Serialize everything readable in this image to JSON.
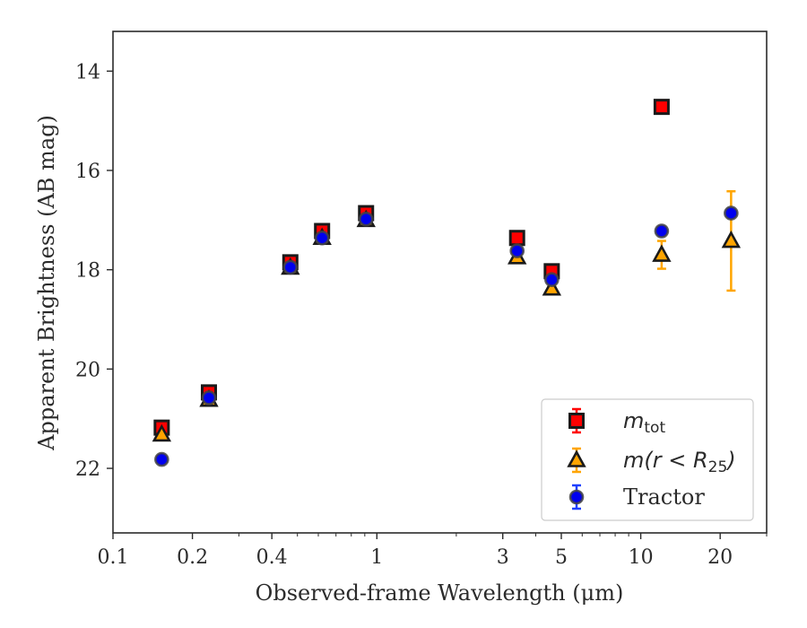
{
  "chart_data": {
    "type": "scatter",
    "xlabel": "Observed-frame Wavelength (μm)",
    "ylabel": "Apparent Brightness (AB mag)",
    "xscale": "log",
    "xlim": [
      0.1,
      30
    ],
    "ylim": [
      23.3,
      13.2
    ],
    "y_inverted": true,
    "x_ticks": [
      {
        "value": 0.1,
        "label": "0.1"
      },
      {
        "value": 0.2,
        "label": "0.2"
      },
      {
        "value": 0.4,
        "label": "0.4"
      },
      {
        "value": 1,
        "label": "1"
      },
      {
        "value": 3,
        "label": "3"
      },
      {
        "value": 5,
        "label": "5"
      },
      {
        "value": 10,
        "label": "10"
      },
      {
        "value": 20,
        "label": "20"
      }
    ],
    "y_ticks": [
      {
        "value": 14,
        "label": "14"
      },
      {
        "value": 16,
        "label": "16"
      },
      {
        "value": 18,
        "label": "18"
      },
      {
        "value": 20,
        "label": "20"
      },
      {
        "value": 22,
        "label": "22"
      }
    ],
    "grid": false,
    "legend_position": "lower right",
    "series": [
      {
        "name": "m_tot",
        "marker": "square",
        "color": "#ff0000",
        "edge_color": "#1a1a1a",
        "error_color": "#ff0000",
        "points": [
          {
            "x": 0.153,
            "y": 21.18,
            "err": 0.06
          },
          {
            "x": 0.231,
            "y": 20.47,
            "err": 0.05
          },
          {
            "x": 0.47,
            "y": 17.85,
            "err": 0.03
          },
          {
            "x": 0.62,
            "y": 17.22,
            "err": 0.03
          },
          {
            "x": 0.91,
            "y": 16.86,
            "err": 0.03
          },
          {
            "x": 3.4,
            "y": 17.36,
            "err": 0.03
          },
          {
            "x": 4.6,
            "y": 18.03,
            "err": 0.04
          },
          {
            "x": 12.0,
            "y": 14.72,
            "err": 0.03
          }
        ]
      },
      {
        "name": "m(r<R25)",
        "marker": "triangle",
        "color": "#ffa500",
        "edge_color": "#1a1a1a",
        "error_color": "#ffa500",
        "points": [
          {
            "x": 0.153,
            "y": 21.32,
            "err": 0.05
          },
          {
            "x": 0.231,
            "y": 20.62,
            "err": 0.04
          },
          {
            "x": 0.47,
            "y": 17.96,
            "err": 0.03
          },
          {
            "x": 0.62,
            "y": 17.36,
            "err": 0.03
          },
          {
            "x": 0.91,
            "y": 17.0,
            "err": 0.03
          },
          {
            "x": 3.4,
            "y": 17.75,
            "err": 0.03
          },
          {
            "x": 4.6,
            "y": 18.38,
            "err": 0.04
          },
          {
            "x": 12.0,
            "y": 17.7,
            "err": 0.28
          },
          {
            "x": 22.0,
            "y": 17.42,
            "err": 1.0
          }
        ]
      },
      {
        "name": "Tractor",
        "marker": "circle",
        "color": "#0000ee",
        "edge_color": "#444444",
        "error_color": "#2040ff",
        "points": [
          {
            "x": 0.153,
            "y": 21.82,
            "err": 0.05
          },
          {
            "x": 0.231,
            "y": 20.58,
            "err": 0.04
          },
          {
            "x": 0.47,
            "y": 17.95,
            "err": 0.03
          },
          {
            "x": 0.62,
            "y": 17.36,
            "err": 0.03
          },
          {
            "x": 0.91,
            "y": 16.98,
            "err": 0.03
          },
          {
            "x": 3.4,
            "y": 17.62,
            "err": 0.04
          },
          {
            "x": 4.6,
            "y": 18.2,
            "err": 0.05
          },
          {
            "x": 12.0,
            "y": 17.22,
            "err": 0.05
          },
          {
            "x": 22.0,
            "y": 16.86,
            "err": 0.05
          }
        ]
      }
    ]
  }
}
